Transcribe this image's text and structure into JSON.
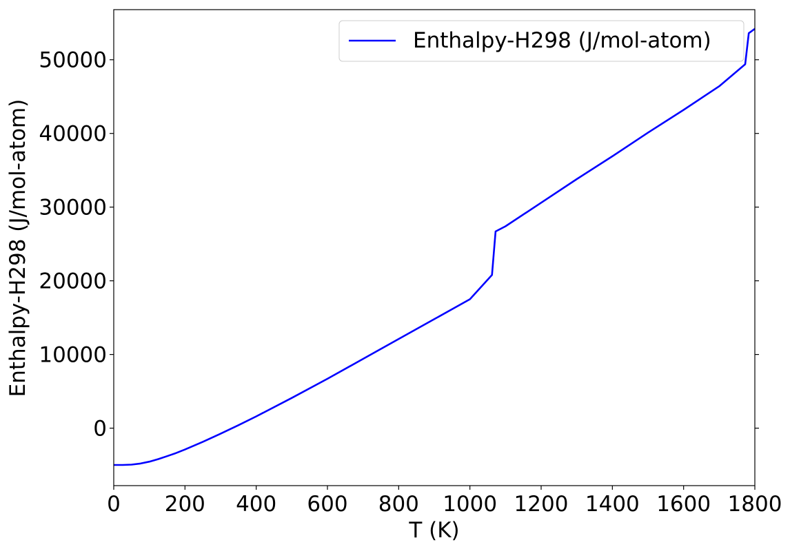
{
  "chart_data": {
    "type": "line",
    "xlabel": "T (K)",
    "ylabel": "Enthalpy-H298 (J/mol-atom)",
    "xlim": [
      0,
      1800
    ],
    "ylim": [
      -7800,
      56800
    ],
    "xticks": [
      0,
      200,
      400,
      600,
      800,
      1000,
      1200,
      1400,
      1600,
      1800
    ],
    "yticks": [
      0,
      10000,
      20000,
      30000,
      40000,
      50000
    ],
    "grid": false,
    "legend_position": "top-right",
    "series": [
      {
        "name": "Enthalpy-H298 (J/mol-atom)",
        "color": "#0000ff",
        "x": [
          0,
          25,
          50,
          75,
          100,
          125,
          150,
          175,
          200,
          250,
          298,
          350,
          400,
          500,
          600,
          700,
          800,
          900,
          1000,
          1062,
          1072,
          1100,
          1200,
          1300,
          1400,
          1500,
          1600,
          1700,
          1773,
          1783,
          1800
        ],
        "y": [
          -5000,
          -5000,
          -4950,
          -4800,
          -4550,
          -4200,
          -3800,
          -3380,
          -2900,
          -1850,
          -800,
          400,
          1600,
          4100,
          6700,
          9400,
          12100,
          14800,
          17500,
          20800,
          26700,
          27400,
          30600,
          33800,
          36900,
          40100,
          43200,
          46400,
          49400,
          53600,
          54200
        ]
      }
    ]
  }
}
